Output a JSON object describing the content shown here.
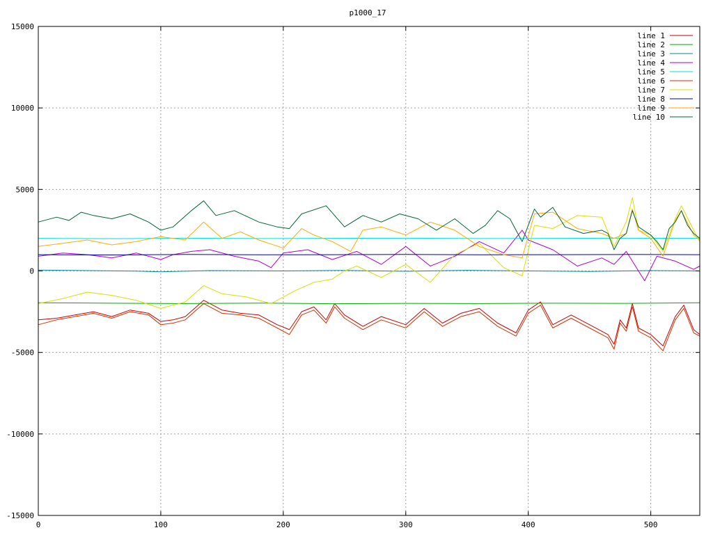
{
  "chart_data": {
    "type": "line",
    "title": "p1000_17",
    "xlabel": "",
    "ylabel": "",
    "xlim": [
      0,
      540
    ],
    "ylim": [
      -15000,
      15000
    ],
    "x_ticks": [
      0,
      100,
      200,
      300,
      400,
      500
    ],
    "y_ticks": [
      -15000,
      -10000,
      -5000,
      0,
      5000,
      10000,
      15000
    ],
    "grid": true,
    "legend_position": "top-right",
    "series": [
      {
        "name": "line 1",
        "color": "#cc0000",
        "x": [
          0,
          15,
          30,
          45,
          60,
          75,
          90,
          100,
          110,
          120,
          135,
          150,
          165,
          180,
          195,
          205,
          215,
          225,
          235,
          242,
          250,
          265,
          280,
          300,
          315,
          330,
          345,
          360,
          375,
          390,
          400,
          410,
          420,
          435,
          450,
          465,
          470,
          475,
          480,
          485,
          490,
          500,
          510,
          520,
          527,
          535,
          540
        ],
        "values": [
          -3000,
          -2900,
          -2700,
          -2500,
          -2800,
          -2400,
          -2600,
          -3100,
          -3000,
          -2800,
          -1800,
          -2400,
          -2600,
          -2700,
          -3300,
          -3600,
          -2500,
          -2200,
          -3000,
          -2000,
          -2700,
          -3400,
          -2800,
          -3300,
          -2300,
          -3200,
          -2600,
          -2300,
          -3200,
          -3800,
          -2400,
          -1900,
          -3300,
          -2700,
          -3300,
          -3900,
          -4500,
          -3000,
          -3500,
          -2000,
          -3500,
          -3900,
          -4600,
          -2800,
          -2100,
          -3600,
          -3900
        ]
      },
      {
        "name": "line 2",
        "color": "#00aa00",
        "x": [
          0,
          60,
          120,
          180,
          240,
          300,
          360,
          420,
          480,
          540
        ],
        "values": [
          -1950,
          -1980,
          -2000,
          -1970,
          -2010,
          -1990,
          -2000,
          -1980,
          -1990,
          -1950
        ]
      },
      {
        "name": "line 3",
        "color": "#008899",
        "x": [
          0,
          40,
          80,
          100,
          140,
          200,
          250,
          300,
          350,
          400,
          450,
          500,
          540
        ],
        "values": [
          50,
          20,
          -10,
          -50,
          20,
          0,
          30,
          -20,
          40,
          0,
          -30,
          20,
          0
        ]
      },
      {
        "name": "line 4",
        "color": "#aa00cc",
        "x": [
          0,
          20,
          40,
          60,
          80,
          100,
          110,
          125,
          140,
          160,
          180,
          190,
          200,
          220,
          240,
          260,
          280,
          300,
          320,
          340,
          360,
          380,
          395,
          400,
          420,
          440,
          460,
          470,
          480,
          495,
          505,
          520,
          535,
          540
        ],
        "values": [
          900,
          1100,
          1000,
          800,
          1100,
          700,
          1000,
          1200,
          1300,
          900,
          600,
          200,
          1100,
          1300,
          700,
          1200,
          400,
          1500,
          300,
          900,
          1800,
          1100,
          2500,
          1900,
          1300,
          300,
          800,
          400,
          1200,
          -600,
          900,
          600,
          100,
          300
        ]
      },
      {
        "name": "line 5",
        "color": "#00dddd",
        "x": [
          0,
          60,
          120,
          180,
          240,
          300,
          360,
          420,
          480,
          540
        ],
        "values": [
          2000,
          1980,
          2010,
          1990,
          2000,
          2010,
          1990,
          2000,
          2010,
          2000
        ]
      },
      {
        "name": "line 6",
        "color": "#cc3300",
        "x": [
          0,
          15,
          30,
          45,
          60,
          75,
          90,
          100,
          110,
          120,
          135,
          150,
          165,
          180,
          195,
          205,
          215,
          225,
          235,
          242,
          250,
          265,
          280,
          300,
          315,
          330,
          345,
          360,
          375,
          390,
          400,
          410,
          420,
          435,
          450,
          465,
          470,
          475,
          480,
          485,
          490,
          500,
          510,
          520,
          527,
          535,
          540
        ],
        "values": [
          -3300,
          -3000,
          -2800,
          -2600,
          -2900,
          -2500,
          -2700,
          -3300,
          -3200,
          -3000,
          -2000,
          -2600,
          -2700,
          -2900,
          -3500,
          -3900,
          -2700,
          -2400,
          -3200,
          -2200,
          -2900,
          -3600,
          -3000,
          -3500,
          -2500,
          -3400,
          -2800,
          -2500,
          -3400,
          -4000,
          -2600,
          -2100,
          -3500,
          -2900,
          -3500,
          -4100,
          -4800,
          -3200,
          -3700,
          -2200,
          -3700,
          -4100,
          -4900,
          -3000,
          -2300,
          -3800,
          -4000
        ]
      },
      {
        "name": "line 7",
        "color": "#dddd00",
        "x": [
          0,
          20,
          40,
          60,
          80,
          100,
          120,
          135,
          150,
          170,
          190,
          210,
          225,
          240,
          250,
          260,
          280,
          300,
          320,
          340,
          360,
          380,
          395,
          405,
          420,
          440,
          460,
          470,
          480,
          485,
          490,
          500,
          510,
          520,
          525,
          535,
          540
        ],
        "values": [
          -2000,
          -1700,
          -1300,
          -1500,
          -1800,
          -2300,
          -1900,
          -900,
          -1400,
          -1600,
          -2000,
          -1200,
          -700,
          -500,
          0,
          300,
          -400,
          400,
          -700,
          1000,
          1700,
          200,
          -300,
          2800,
          2600,
          3400,
          3300,
          1500,
          3000,
          4500,
          2500,
          2200,
          1200,
          3200,
          4000,
          2500,
          1800
        ]
      },
      {
        "name": "line 8",
        "color": "#0000aa",
        "x": [
          0,
          60,
          120,
          180,
          240,
          300,
          360,
          420,
          480,
          540
        ],
        "values": [
          1000,
          980,
          1010,
          990,
          1000,
          1010,
          990,
          1000,
          1010,
          1000
        ]
      },
      {
        "name": "line 9",
        "color": "#ffaa00",
        "x": [
          0,
          20,
          40,
          60,
          80,
          100,
          120,
          135,
          150,
          165,
          180,
          200,
          215,
          225,
          240,
          255,
          265,
          280,
          300,
          320,
          340,
          360,
          380,
          395,
          405,
          420,
          440,
          460,
          470,
          480,
          485,
          490,
          500,
          510,
          520,
          525,
          535,
          540
        ],
        "values": [
          1500,
          1700,
          1900,
          1600,
          1800,
          2100,
          1900,
          3000,
          2000,
          2400,
          1900,
          1400,
          2600,
          2200,
          1800,
          1200,
          2500,
          2700,
          2200,
          3000,
          2500,
          1500,
          1000,
          800,
          3500,
          3600,
          2600,
          2300,
          2000,
          2300,
          3800,
          2500,
          2000,
          900,
          3100,
          3700,
          2200,
          1900
        ]
      },
      {
        "name": "line 10",
        "color": "#006633",
        "x": [
          0,
          15,
          25,
          35,
          45,
          60,
          75,
          90,
          100,
          110,
          125,
          135,
          145,
          160,
          180,
          195,
          205,
          215,
          235,
          250,
          265,
          280,
          295,
          310,
          325,
          340,
          355,
          365,
          375,
          385,
          390,
          395,
          400,
          405,
          410,
          420,
          430,
          445,
          460,
          465,
          470,
          475,
          480,
          485,
          490,
          500,
          505,
          510,
          515,
          520,
          525,
          530,
          535,
          540
        ],
        "values": [
          3000,
          3300,
          3100,
          3600,
          3400,
          3200,
          3500,
          3000,
          2500,
          2700,
          3700,
          4300,
          3400,
          3700,
          3000,
          2700,
          2600,
          3500,
          4000,
          2700,
          3400,
          3000,
          3500,
          3200,
          2500,
          3200,
          2300,
          2800,
          3700,
          3200,
          2500,
          1800,
          2800,
          3800,
          3300,
          3900,
          2700,
          2300,
          2500,
          2300,
          1300,
          2000,
          2300,
          3700,
          2700,
          2200,
          1800,
          1300,
          2600,
          3000,
          3700,
          2800,
          2300,
          2000
        ]
      }
    ]
  }
}
